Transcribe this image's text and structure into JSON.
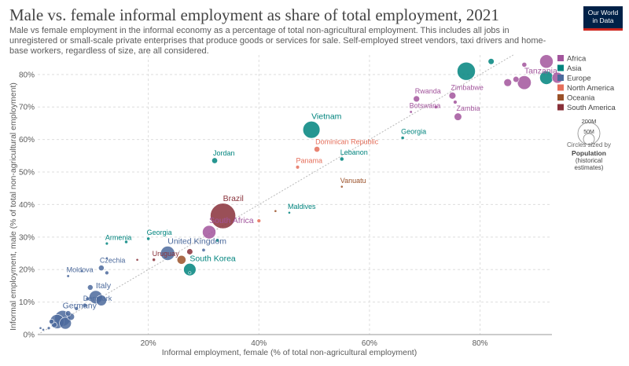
{
  "header": {
    "title": "Male vs. female informal employment as share of total employment, 2021",
    "subtitle": "Male vs female employment in the informal economy as a percentage of total non-agricultural employment. This includes all jobs in unregistered or small-scale private enterprises that produce goods or services for sale. Self-employed street vendors, taxi drivers and home-base workers, regardless of size, are all considered.",
    "logo_line1": "Our World",
    "logo_line2": "in Data",
    "logo_bg": "#002147",
    "logo_accent": "#ce261e"
  },
  "legend": {
    "size_circle_big": "200M",
    "size_circle_small": "50M",
    "size_note": "Circles sized by",
    "size_var_line1": "Population",
    "size_var_line2": "(historical",
    "size_var_line3": "estimates)"
  },
  "chart_data": {
    "type": "scatter",
    "title": "Male vs. female informal employment as share of total employment, 2021",
    "xlabel": "Informal employment, female (% of total non-agricultural employment)",
    "ylabel": "Informal employment, male (% of total non-agricultural employment)",
    "xlim": [
      0,
      93
    ],
    "ylim": [
      0,
      86
    ],
    "x_ticks": [
      20,
      40,
      60,
      80
    ],
    "x_tick_labels": [
      "20%",
      "40%",
      "60%",
      "80%"
    ],
    "y_ticks": [
      0,
      10,
      20,
      30,
      40,
      50,
      60,
      70,
      80
    ],
    "y_tick_labels": [
      "0%",
      "10%",
      "20%",
      "30%",
      "40%",
      "50%",
      "60%",
      "70%",
      "80%"
    ],
    "grid": true,
    "legend_position": "right",
    "size_variable": "population",
    "regions": [
      {
        "name": "Africa",
        "color": "#a2559c"
      },
      {
        "name": "Asia",
        "color": "#00847e"
      },
      {
        "name": "Europe",
        "color": "#4c6a9c"
      },
      {
        "name": "North America",
        "color": "#e56e5a"
      },
      {
        "name": "Oceania",
        "color": "#9a5129"
      },
      {
        "name": "South America",
        "color": "#883039"
      }
    ],
    "points": [
      {
        "x": 92,
        "y": 84,
        "region": "Africa",
        "pop": 60
      },
      {
        "x": 82,
        "y": 84,
        "region": "Asia",
        "pop": 12
      },
      {
        "x": 88,
        "y": 83,
        "region": "Africa",
        "pop": 8
      },
      {
        "x": 77.5,
        "y": 81,
        "region": "Asia",
        "pop": 110
      },
      {
        "x": 92,
        "y": 79,
        "region": "Asia",
        "pop": 60
      },
      {
        "x": 94,
        "y": 79,
        "region": "Africa",
        "pop": 40
      },
      {
        "x": 88,
        "y": 77.5,
        "label": "Tanzania",
        "region": "Africa",
        "pop": 63
      },
      {
        "x": 85,
        "y": 77.5,
        "region": "Africa",
        "pop": 20
      },
      {
        "x": 86.5,
        "y": 78.5,
        "region": "Africa",
        "pop": 12
      },
      {
        "x": 75,
        "y": 73.5,
        "label": "Zimbabwe",
        "region": "Africa",
        "pop": 16
      },
      {
        "x": 68.5,
        "y": 72.5,
        "label": "Rwanda",
        "region": "Africa",
        "pop": 13
      },
      {
        "x": 75.5,
        "y": 71.5,
        "region": "Africa",
        "pop": 5
      },
      {
        "x": 72,
        "y": 70,
        "region": "Africa",
        "pop": 4
      },
      {
        "x": 67.5,
        "y": 68.5,
        "label": "Botswana",
        "region": "Africa",
        "pop": 2.5
      },
      {
        "x": 76,
        "y": 67,
        "label": "Zambia",
        "region": "Africa",
        "pop": 19
      },
      {
        "x": 49.5,
        "y": 63,
        "label": "Vietnam",
        "region": "Asia",
        "pop": 97
      },
      {
        "x": 66,
        "y": 60.5,
        "label": "Georgia",
        "region": "Asia",
        "pop": 3.7
      },
      {
        "x": 50.5,
        "y": 57,
        "label": "Dominican Republic",
        "region": "North America",
        "pop": 11
      },
      {
        "x": 32,
        "y": 53.5,
        "label": "Jordan",
        "region": "Asia",
        "pop": 11
      },
      {
        "x": 55,
        "y": 54,
        "label": "Lebanon",
        "region": "Asia",
        "pop": 5.5
      },
      {
        "x": 47,
        "y": 51.5,
        "label": "Panama",
        "region": "North America",
        "pop": 4.4
      },
      {
        "x": 55,
        "y": 45.5,
        "label": "Vanuatu",
        "region": "Oceania",
        "pop": 0.3
      },
      {
        "x": 33.5,
        "y": 36.5,
        "label": "Brazil",
        "region": "South America",
        "pop": 214
      },
      {
        "x": 45.5,
        "y": 37.5,
        "label": "Maldives",
        "region": "Asia",
        "pop": 0.5
      },
      {
        "x": 43,
        "y": 38,
        "region": "Oceania",
        "pop": 1
      },
      {
        "x": 40,
        "y": 35,
        "region": "North America",
        "pop": 5
      },
      {
        "x": 31,
        "y": 31.5,
        "label": "South Africa",
        "region": "Africa",
        "pop": 60
      },
      {
        "x": 20,
        "y": 29.5,
        "label": "Georgia",
        "region": "Asia",
        "pop": 3.7
      },
      {
        "x": 12.5,
        "y": 28,
        "label": "Armenia",
        "region": "Asia",
        "pop": 2.8
      },
      {
        "x": 16,
        "y": 28.5,
        "region": "Asia",
        "pop": 3.5
      },
      {
        "x": 32.5,
        "y": 29,
        "region": "Asia",
        "pop": 4
      },
      {
        "x": 23.5,
        "y": 25,
        "label": "United Kingdom",
        "region": "Europe",
        "pop": 67
      },
      {
        "x": 27.5,
        "y": 25.5,
        "region": "South America",
        "pop": 12
      },
      {
        "x": 30,
        "y": 26,
        "region": "Europe",
        "pop": 4
      },
      {
        "x": 26,
        "y": 23,
        "region": "Oceania",
        "pop": 26
      },
      {
        "x": 21,
        "y": 23,
        "label": "Uruguay",
        "region": "South America",
        "pop": 3.4
      },
      {
        "x": 18,
        "y": 23,
        "region": "South America",
        "pop": 2
      },
      {
        "x": 12.5,
        "y": 23.5,
        "region": "Europe",
        "pop": 2
      },
      {
        "x": 27.5,
        "y": 20,
        "label": "South Korea",
        "region": "Asia",
        "pop": 51
      },
      {
        "x": 27.5,
        "y": 19,
        "region": "Asia",
        "pop": 1.5
      },
      {
        "x": 11.5,
        "y": 20.5,
        "label": "Czechia",
        "region": "Europe",
        "pop": 10.5
      },
      {
        "x": 12.5,
        "y": 19,
        "region": "Europe",
        "pop": 5
      },
      {
        "x": 8,
        "y": 19.5,
        "region": "Europe",
        "pop": 2
      },
      {
        "x": 5.5,
        "y": 18,
        "label": "Moldova",
        "region": "Europe",
        "pop": 2.6
      },
      {
        "x": 9.5,
        "y": 14.5,
        "region": "Europe",
        "pop": 10
      },
      {
        "x": 10.5,
        "y": 11.5,
        "label": "Italy",
        "region": "Europe",
        "pop": 59
      },
      {
        "x": 11.5,
        "y": 10.5,
        "region": "Europe",
        "pop": 38
      },
      {
        "x": 9,
        "y": 11,
        "region": "Europe",
        "pop": 5
      },
      {
        "x": 8.5,
        "y": 9,
        "label": "Denmark",
        "region": "Europe",
        "pop": 5.8
      },
      {
        "x": 7,
        "y": 8,
        "region": "Europe",
        "pop": 5
      },
      {
        "x": 5.5,
        "y": 6.5,
        "region": "Europe",
        "pop": 10
      },
      {
        "x": 6,
        "y": 5.5,
        "region": "Europe",
        "pop": 17
      },
      {
        "x": 4.5,
        "y": 5,
        "label": "Germany",
        "region": "Europe",
        "pop": 83
      },
      {
        "x": 3.5,
        "y": 4,
        "region": "Europe",
        "pop": 67
      },
      {
        "x": 5,
        "y": 3.5,
        "region": "Europe",
        "pop": 47
      },
      {
        "x": 3,
        "y": 3,
        "region": "Europe",
        "pop": 10
      },
      {
        "x": 2.5,
        "y": 4,
        "region": "Europe",
        "pop": 8
      },
      {
        "x": 1,
        "y": 1.5,
        "region": "Europe",
        "pop": 2
      },
      {
        "x": 0.5,
        "y": 2,
        "region": "Europe",
        "pop": 1
      },
      {
        "x": 2,
        "y": 2,
        "region": "Europe",
        "pop": 3
      }
    ]
  }
}
